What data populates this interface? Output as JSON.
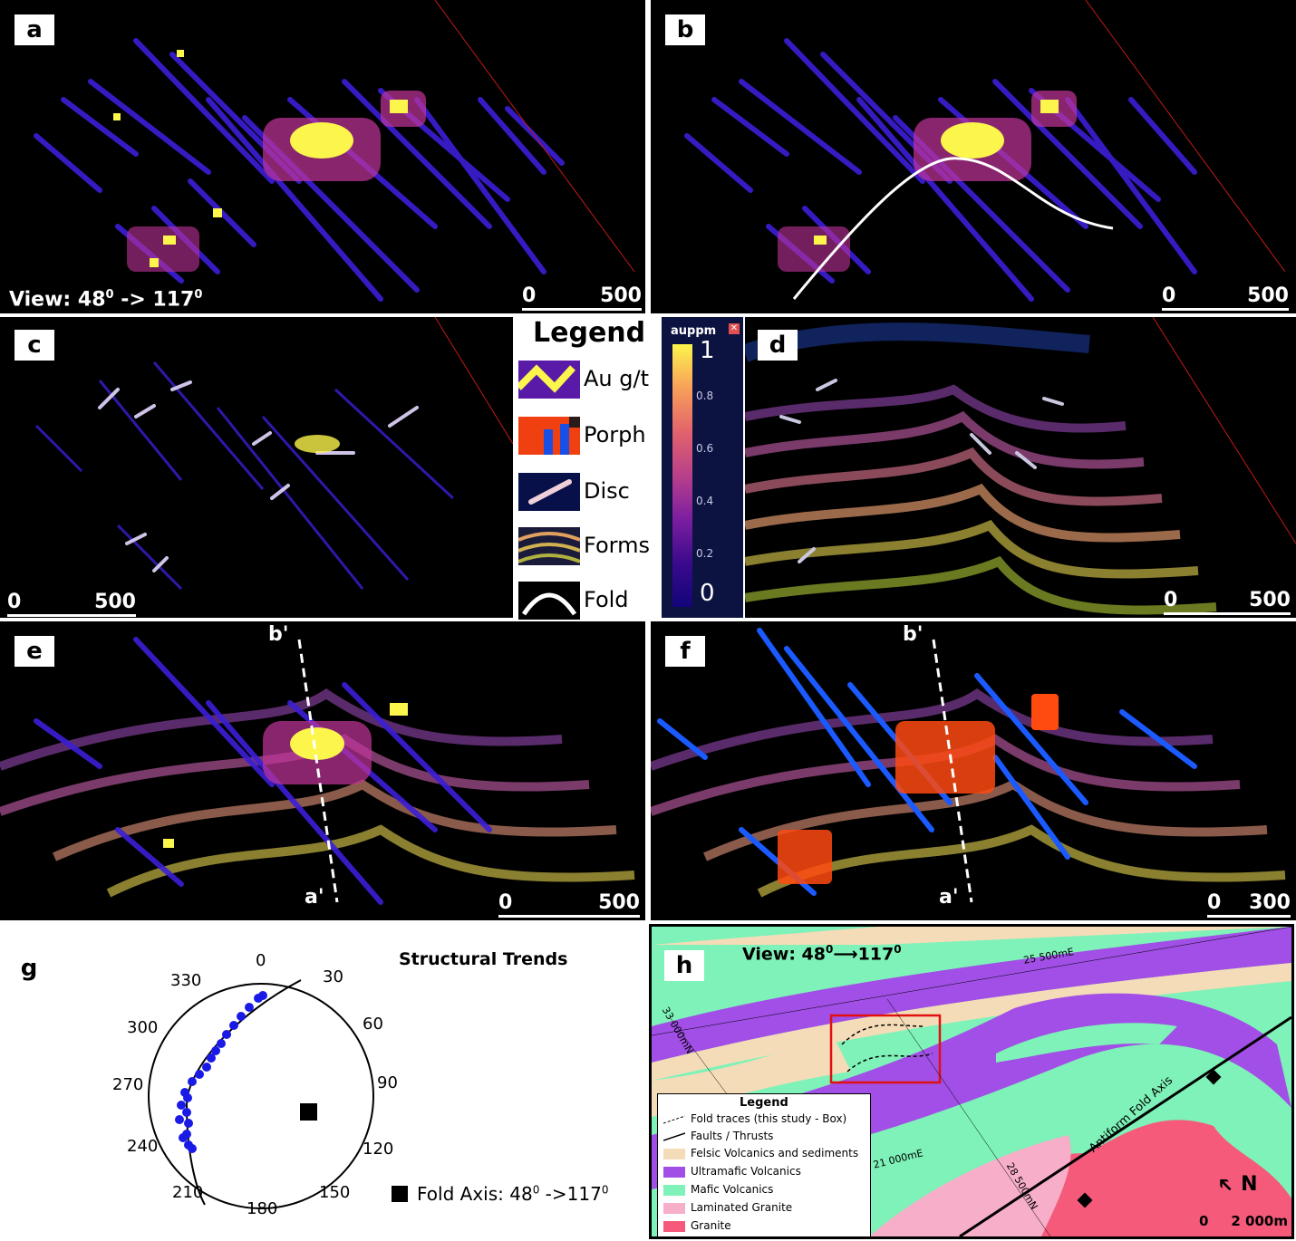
{
  "panels": {
    "a": {
      "tag": "a",
      "view": "View: 48",
      "view_sup": "0",
      "view_arrow": " -> 117",
      "view_sup2": "0",
      "scale_start": "0",
      "scale_end": "500"
    },
    "b": {
      "tag": "b",
      "scale_start": "0",
      "scale_end": "500"
    },
    "c": {
      "tag": "c",
      "scale_start": "0",
      "scale_end": "500"
    },
    "d": {
      "tag": "d",
      "scale_start": "0",
      "scale_end": "500"
    },
    "e": {
      "tag": "e",
      "section_top": "b'",
      "section_bottom": "a'",
      "scale_start": "0",
      "scale_end": "500"
    },
    "f": {
      "tag": "f",
      "section_top": "b'",
      "section_bottom": "a'",
      "scale_start": "0",
      "scale_end": "300"
    },
    "g": {
      "tag": "g"
    },
    "h": {
      "tag": "h"
    }
  },
  "legend": {
    "title": "Legend",
    "items": [
      {
        "label": "Au g/t",
        "icon": "au-swatch"
      },
      {
        "label": "Porph",
        "icon": "porph-swatch"
      },
      {
        "label": "Disc",
        "icon": "disc-swatch"
      },
      {
        "label": "Forms",
        "icon": "forms-swatch"
      },
      {
        "label": "Fold",
        "icon": "fold-swatch"
      }
    ]
  },
  "colorbar": {
    "title": "auppm",
    "max": "1",
    "min": "0",
    "ticks": [
      "0.8",
      "0.6",
      "0.4",
      "0.2"
    ],
    "colors": {
      "high": "#fcf54c",
      "mid": "#e2636b",
      "low": "#13047a"
    }
  },
  "stereonet": {
    "title": "Structural Trends",
    "labels": [
      "0",
      "30",
      "60",
      "90",
      "120",
      "150",
      "180",
      "210",
      "240",
      "270",
      "300",
      "330"
    ],
    "fold_axis_text": "Fold Axis: 48",
    "fold_axis_sup": "0",
    "fold_axis_arrow": " ->117",
    "fold_axis_sup2": "0"
  },
  "map": {
    "view": "View: 48",
    "view_sup": "0",
    "view_arrow": "⟶117",
    "view_sup2": "0",
    "grid_labels": [
      "25 500mE",
      "33 000mN",
      "21 000mE",
      "28 500mN"
    ],
    "fold_axis_label": "Antiform Fold Axis",
    "north": "N",
    "scale_start": "0",
    "scale_end": "2 000m",
    "legend": {
      "title": "Legend",
      "items": [
        {
          "label": "Fold traces (this study - Box)",
          "color": ""
        },
        {
          "label": "Faults / Thrusts",
          "color": ""
        },
        {
          "label": "Felsic Volcanics and sediments",
          "color": "#f5dcb8"
        },
        {
          "label": "Ultramafic Volcanics",
          "color": "#a14fe6"
        },
        {
          "label": "Mafic Volcanics",
          "color": "#7ef2b8"
        },
        {
          "label": "Laminated Granite",
          "color": "#f7aec8"
        },
        {
          "label": "Granite",
          "color": "#f55a7a"
        }
      ]
    }
  }
}
